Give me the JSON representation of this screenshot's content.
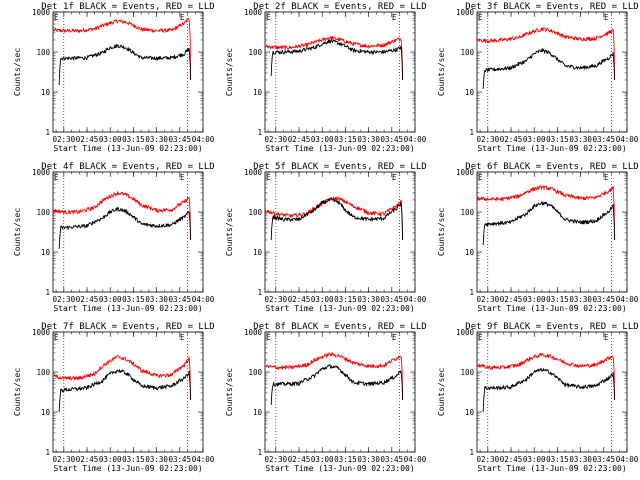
{
  "chart_data": {
    "type": "line",
    "xlabel": "Start Time (13-Jun-09 02:23:00)",
    "ylabel": "Counts/sec",
    "x_tick_labels": [
      "02:30",
      "02:45",
      "03:00",
      "03:15",
      "03:30",
      "03:45",
      "04:00"
    ],
    "x_ticks": [
      "02:30",
      "02:45",
      "03:00",
      "03:15",
      "03:30",
      "03:45",
      "04:00"
    ],
    "xlim": [
      "02:23",
      "04:00"
    ],
    "ylim": [
      1,
      1000
    ],
    "y_scale": "log",
    "y_tick_labels": [
      "1",
      "10",
      "100",
      "1000"
    ],
    "vertical_dotted_lines": [
      "02:30",
      "03:50"
    ],
    "corner_marks": [
      "E",
      "E"
    ],
    "series_colors": {
      "black": "#000000",
      "red": "#ff0000"
    },
    "panels": [
      {
        "title": "Det 1f BLACK = Events, RED = LLD",
        "series": [
          {
            "color": "black",
            "x": [
              "02:27",
              "02:28",
              "02:35",
              "02:45",
              "02:55",
              "03:00",
              "03:05",
              "03:10",
              "03:15",
              "03:20",
              "03:30",
              "03:40",
              "03:48",
              "03:51",
              "03:52"
            ],
            "y": [
              15,
              70,
              70,
              72,
              95,
              130,
              145,
              130,
              95,
              72,
              70,
              72,
              90,
              120,
              20
            ]
          },
          {
            "color": "red",
            "x": [
              "02:23",
              "02:30",
              "02:40",
              "02:50",
              "03:00",
              "03:05",
              "03:10",
              "03:20",
              "03:30",
              "03:40",
              "03:48",
              "03:51",
              "03:52"
            ],
            "y": [
              350,
              340,
              340,
              380,
              530,
              600,
              560,
              370,
              340,
              350,
              520,
              700,
              20
            ]
          }
        ]
      },
      {
        "title": "Det 2f BLACK = Events, RED = LLD",
        "series": [
          {
            "color": "black",
            "x": [
              "02:27",
              "02:28",
              "02:35",
              "02:45",
              "02:55",
              "03:00",
              "03:05",
              "03:10",
              "03:15",
              "03:20",
              "03:30",
              "03:40",
              "03:48",
              "03:51",
              "03:52"
            ],
            "y": [
              25,
              100,
              100,
              105,
              130,
              160,
              190,
              170,
              140,
              110,
              100,
              100,
              115,
              130,
              20
            ]
          },
          {
            "color": "red",
            "x": [
              "02:23",
              "02:30",
              "02:40",
              "02:50",
              "03:00",
              "03:05",
              "03:10",
              "03:20",
              "03:30",
              "03:40",
              "03:48",
              "03:51",
              "03:52"
            ],
            "y": [
              140,
              130,
              130,
              150,
              200,
              230,
              210,
              160,
              140,
              150,
              200,
              220,
              20
            ]
          }
        ]
      },
      {
        "title": "Det 3f BLACK = Events, RED = LLD",
        "series": [
          {
            "color": "black",
            "x": [
              "02:27",
              "02:28",
              "02:35",
              "02:45",
              "02:55",
              "03:00",
              "03:05",
              "03:10",
              "03:15",
              "03:20",
              "03:30",
              "03:40",
              "03:48",
              "03:51",
              "03:52"
            ],
            "y": [
              12,
              35,
              37,
              40,
              60,
              90,
              110,
              95,
              65,
              45,
              40,
              45,
              70,
              90,
              20
            ]
          },
          {
            "color": "red",
            "x": [
              "02:23",
              "02:30",
              "02:40",
              "02:50",
              "03:00",
              "03:05",
              "03:10",
              "03:20",
              "03:30",
              "03:40",
              "03:48",
              "03:51",
              "03:52"
            ],
            "y": [
              200,
              190,
              200,
              230,
              330,
              380,
              350,
              240,
              210,
              220,
              300,
              350,
              20
            ]
          }
        ]
      },
      {
        "title": "Det 4f BLACK = Events, RED = LLD",
        "series": [
          {
            "color": "black",
            "x": [
              "02:27",
              "02:28",
              "02:35",
              "02:45",
              "02:55",
              "03:00",
              "03:05",
              "03:10",
              "03:15",
              "03:20",
              "03:30",
              "03:40",
              "03:48",
              "03:51",
              "03:52"
            ],
            "y": [
              12,
              40,
              42,
              45,
              70,
              100,
              120,
              105,
              75,
              50,
              45,
              48,
              75,
              100,
              20
            ]
          },
          {
            "color": "red",
            "x": [
              "02:23",
              "02:30",
              "02:40",
              "02:50",
              "03:00",
              "03:05",
              "03:10",
              "03:20",
              "03:30",
              "03:40",
              "03:48",
              "03:51",
              "03:52"
            ],
            "y": [
              110,
              100,
              100,
              130,
              250,
              300,
              270,
              150,
              110,
              115,
              180,
              230,
              20
            ]
          }
        ]
      },
      {
        "title": "Det 5f BLACK = Events, RED = LLD",
        "series": [
          {
            "color": "black",
            "x": [
              "02:27",
              "02:28",
              "02:35",
              "02:45",
              "02:55",
              "03:00",
              "03:05",
              "03:10",
              "03:15",
              "03:20",
              "03:30",
              "03:40",
              "03:48",
              "03:51",
              "03:52"
            ],
            "y": [
              20,
              75,
              65,
              65,
              110,
              170,
              200,
              180,
              110,
              75,
              65,
              70,
              120,
              160,
              20
            ]
          },
          {
            "color": "red",
            "x": [
              "02:23",
              "02:30",
              "02:40",
              "02:50",
              "03:00",
              "03:05",
              "03:10",
              "03:20",
              "03:30",
              "03:40",
              "03:48",
              "03:51",
              "03:52"
            ],
            "y": [
              110,
              90,
              80,
              90,
              160,
              210,
              220,
              140,
              95,
              90,
              140,
              180,
              20
            ]
          }
        ]
      },
      {
        "title": "Det 6f BLACK = Events, RED = LLD",
        "series": [
          {
            "color": "black",
            "x": [
              "02:27",
              "02:28",
              "02:35",
              "02:45",
              "02:55",
              "03:00",
              "03:05",
              "03:10",
              "03:15",
              "03:20",
              "03:30",
              "03:40",
              "03:48",
              "03:51",
              "03:52"
            ],
            "y": [
              15,
              50,
              52,
              55,
              90,
              140,
              170,
              150,
              100,
              65,
              55,
              60,
              100,
              140,
              20
            ]
          },
          {
            "color": "red",
            "x": [
              "02:23",
              "02:30",
              "02:40",
              "02:50",
              "03:00",
              "03:05",
              "03:10",
              "03:20",
              "03:30",
              "03:40",
              "03:48",
              "03:51",
              "03:52"
            ],
            "y": [
              220,
              210,
              210,
              250,
              380,
              420,
              390,
              260,
              220,
              230,
              330,
              400,
              20
            ]
          }
        ]
      },
      {
        "title": "Det 7f BLACK = Events, RED = LLD",
        "series": [
          {
            "color": "black",
            "x": [
              "02:27",
              "02:28",
              "02:35",
              "02:45",
              "02:55",
              "03:00",
              "03:05",
              "03:10",
              "03:15",
              "03:20",
              "03:30",
              "03:40",
              "03:48",
              "03:51",
              "03:52"
            ],
            "y": [
              10,
              35,
              37,
              40,
              60,
              90,
              110,
              95,
              65,
              45,
              40,
              45,
              70,
              95,
              20
            ]
          },
          {
            "color": "red",
            "x": [
              "02:23",
              "02:30",
              "02:40",
              "02:50",
              "03:00",
              "03:05",
              "03:10",
              "03:20",
              "03:30",
              "03:40",
              "03:48",
              "03:51",
              "03:52"
            ],
            "y": [
              80,
              70,
              70,
              90,
              190,
              240,
              210,
              110,
              80,
              85,
              150,
              220,
              20
            ]
          }
        ]
      },
      {
        "title": "Det 8f BLACK = Events, RED = LLD",
        "series": [
          {
            "color": "black",
            "x": [
              "02:27",
              "02:28",
              "02:35",
              "02:45",
              "02:55",
              "03:00",
              "03:05",
              "03:10",
              "03:15",
              "03:20",
              "03:30",
              "03:40",
              "03:48",
              "03:51",
              "03:52"
            ],
            "y": [
              15,
              50,
              50,
              52,
              80,
              120,
              140,
              125,
              85,
              55,
              50,
              55,
              80,
              110,
              20
            ]
          },
          {
            "color": "red",
            "x": [
              "02:23",
              "02:30",
              "02:40",
              "02:50",
              "03:00",
              "03:05",
              "03:10",
              "03:20",
              "03:30",
              "03:40",
              "03:48",
              "03:51",
              "03:52"
            ],
            "y": [
              140,
              130,
              130,
              150,
              240,
              280,
              260,
              170,
              140,
              145,
              220,
              260,
              20
            ]
          }
        ]
      },
      {
        "title": "Det 9f BLACK = Events, RED = LLD",
        "series": [
          {
            "color": "black",
            "x": [
              "02:27",
              "02:28",
              "02:35",
              "02:45",
              "02:55",
              "03:00",
              "03:05",
              "03:10",
              "03:15",
              "03:20",
              "03:30",
              "03:40",
              "03:48",
              "03:51",
              "03:52"
            ],
            "y": [
              10,
              40,
              40,
              42,
              65,
              100,
              115,
              100,
              70,
              48,
              42,
              45,
              70,
              90,
              20
            ]
          },
          {
            "color": "red",
            "x": [
              "02:23",
              "02:30",
              "02:40",
              "02:50",
              "03:00",
              "03:05",
              "03:10",
              "03:20",
              "03:30",
              "03:40",
              "03:48",
              "03:51",
              "03:52"
            ],
            "y": [
              150,
              130,
              130,
              150,
              240,
              270,
              250,
              170,
              140,
              150,
              220,
              260,
              20
            ]
          }
        ]
      }
    ]
  }
}
